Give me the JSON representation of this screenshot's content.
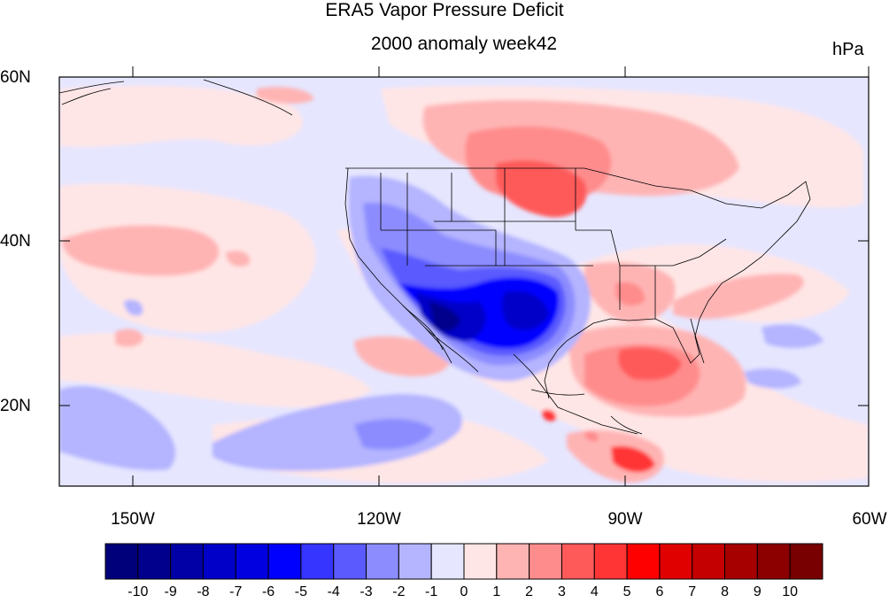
{
  "title": "ERA5 Vapor Pressure Deficit",
  "subtitle": "2000 anomaly week42",
  "units": "hPa",
  "lat_labels": [
    "60N",
    "40N",
    "20N"
  ],
  "lon_labels": [
    "150W",
    "120W",
    "90W",
    "60W"
  ],
  "colorbar": {
    "labels": [
      "-10",
      "-9",
      "-8",
      "-7",
      "-6",
      "-5",
      "-4",
      "-3",
      "-2",
      "-1",
      "0",
      "1",
      "2",
      "3",
      "4",
      "5",
      "6",
      "7",
      "8",
      "9",
      "10"
    ],
    "colors": [
      "#00007a",
      "#00008c",
      "#0000a6",
      "#0000c8",
      "#0000e0",
      "#0000ff",
      "#3535ff",
      "#5a5aff",
      "#8c8cff",
      "#b4b4ff",
      "#e6e6ff",
      "#ffe6e6",
      "#ffb4b4",
      "#ff8c8c",
      "#ff5a5a",
      "#ff3535",
      "#ff0000",
      "#e00000",
      "#c40000",
      "#a60000",
      "#8c0000",
      "#780000"
    ]
  },
  "colors": {
    "land_line": "#000000",
    "background": "#e6e6ff"
  }
}
